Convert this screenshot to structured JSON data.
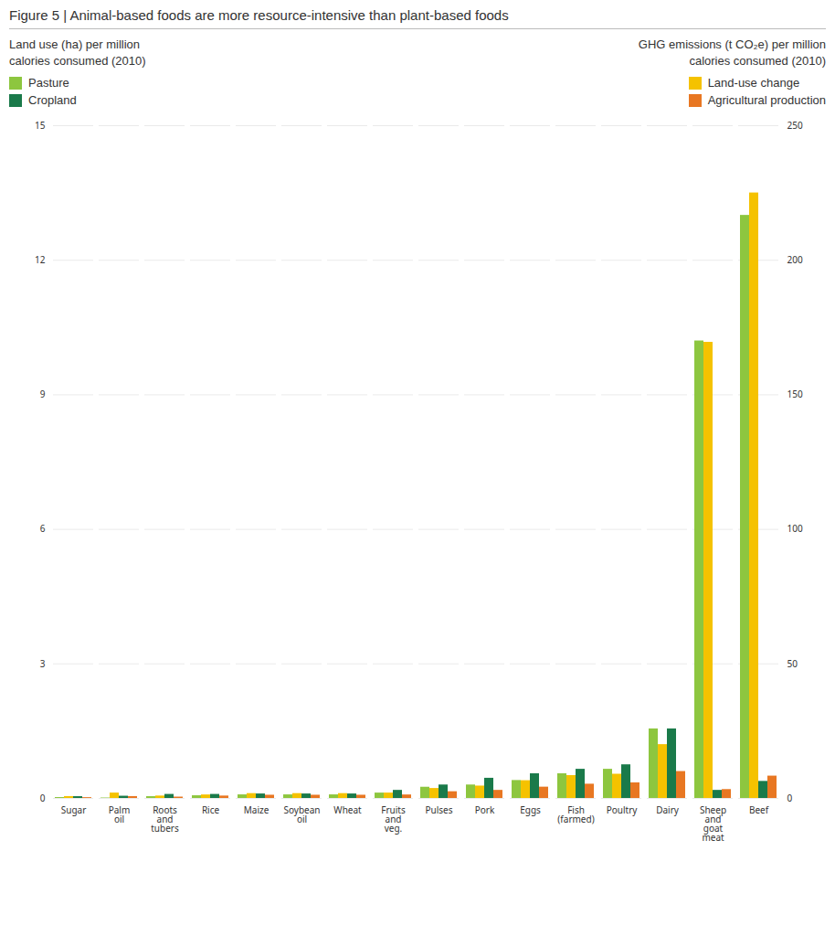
{
  "chart_data": {
    "type": "bar",
    "title": "Figure 5  |  Animal-based foods are more resource-intensive than plant-based foods",
    "ylabel": "Land use (ha) per million\ncalories consumed (2010)",
    "y2label": "GHG emissions (t CO₂e) per million\ncalories consumed (2010)",
    "categories": [
      "Sugar",
      "Palm\noil",
      "Roots\nand\ntubers",
      "Rice",
      "Maize",
      "Soybean\noil",
      "Wheat",
      "Fruits\nand\nveg.",
      "Pulses",
      "Pork",
      "Eggs",
      "Fish\n(farmed)",
      "Poultry",
      "Dairy",
      "Sheep\nand\ngoat\nmeat",
      "Beef"
    ],
    "series": [
      {
        "name": "Pasture",
        "color": "#8dc63f",
        "axis": "y",
        "values": [
          0.02,
          0.01,
          0.04,
          0.06,
          0.08,
          0.08,
          0.08,
          0.12,
          0.25,
          0.3,
          0.4,
          0.55,
          0.65,
          1.55,
          10.2,
          13.0
        ]
      },
      {
        "name": "Land-use change",
        "color": "#f5c200",
        "axis": "y2",
        "values": [
          0.7,
          2.0,
          0.9,
          1.3,
          1.8,
          1.8,
          1.8,
          2.0,
          3.7,
          4.6,
          6.6,
          8.5,
          9.0,
          20.0,
          169.5,
          225.0
        ]
      },
      {
        "name": "Cropland",
        "color": "#1a7a4a",
        "axis": "y",
        "values": [
          0.04,
          0.05,
          0.09,
          0.09,
          0.1,
          0.1,
          0.1,
          0.18,
          0.3,
          0.45,
          0.55,
          0.65,
          0.75,
          1.55,
          0.18,
          0.38
        ]
      },
      {
        "name": "Agricultural production",
        "color": "#e87722",
        "axis": "y2",
        "values": [
          0.3,
          0.7,
          0.5,
          0.9,
          1.2,
          1.2,
          1.2,
          1.3,
          2.5,
          3.0,
          4.2,
          5.3,
          5.8,
          10.0,
          3.3,
          8.3
        ]
      }
    ],
    "ylim": [
      0,
      15
    ],
    "yticks": [
      0,
      3,
      6,
      9,
      12,
      15
    ],
    "y2lim": [
      0,
      250
    ],
    "y2ticks": [
      0,
      50,
      100,
      150,
      200,
      250
    ],
    "grid": true
  }
}
